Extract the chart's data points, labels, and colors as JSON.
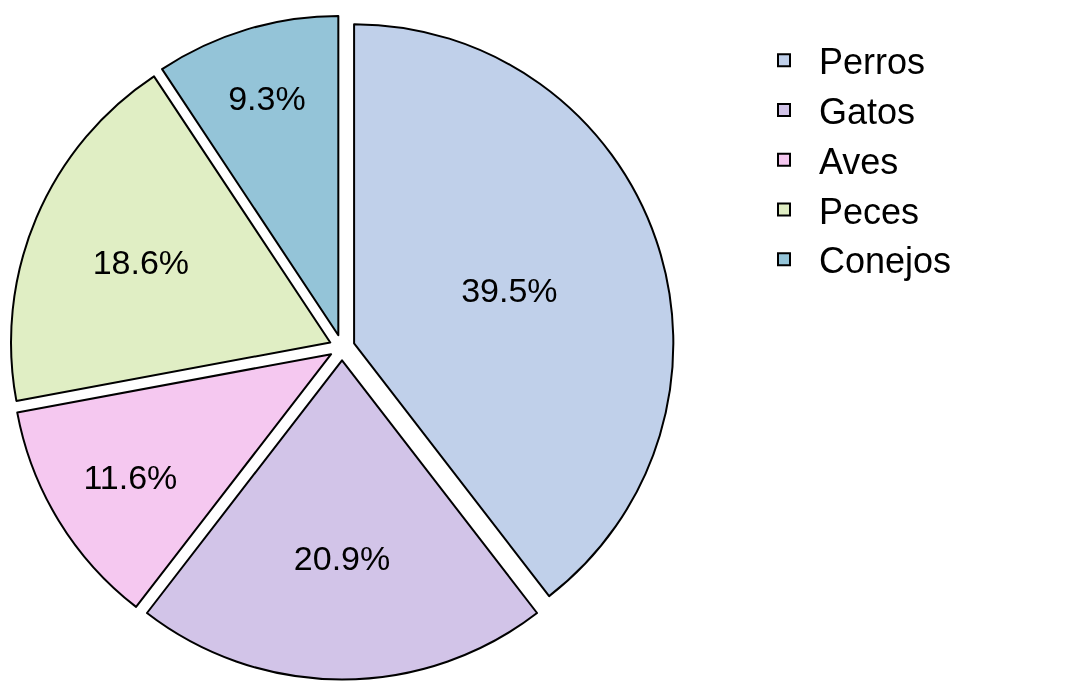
{
  "chart_data": {
    "type": "pie",
    "categories": [
      "Perros",
      "Gatos",
      "Aves",
      "Peces",
      "Conejos"
    ],
    "values": [
      39.5,
      20.9,
      11.6,
      18.6,
      9.3
    ],
    "value_labels": [
      "39.5%",
      "20.9%",
      "11.6%",
      "18.6%",
      "9.3%"
    ],
    "colors": [
      "#c0d0ea",
      "#d2c4e8",
      "#f5c8f0",
      "#e0eec4",
      "#94c4d8"
    ],
    "legend": "top right"
  }
}
